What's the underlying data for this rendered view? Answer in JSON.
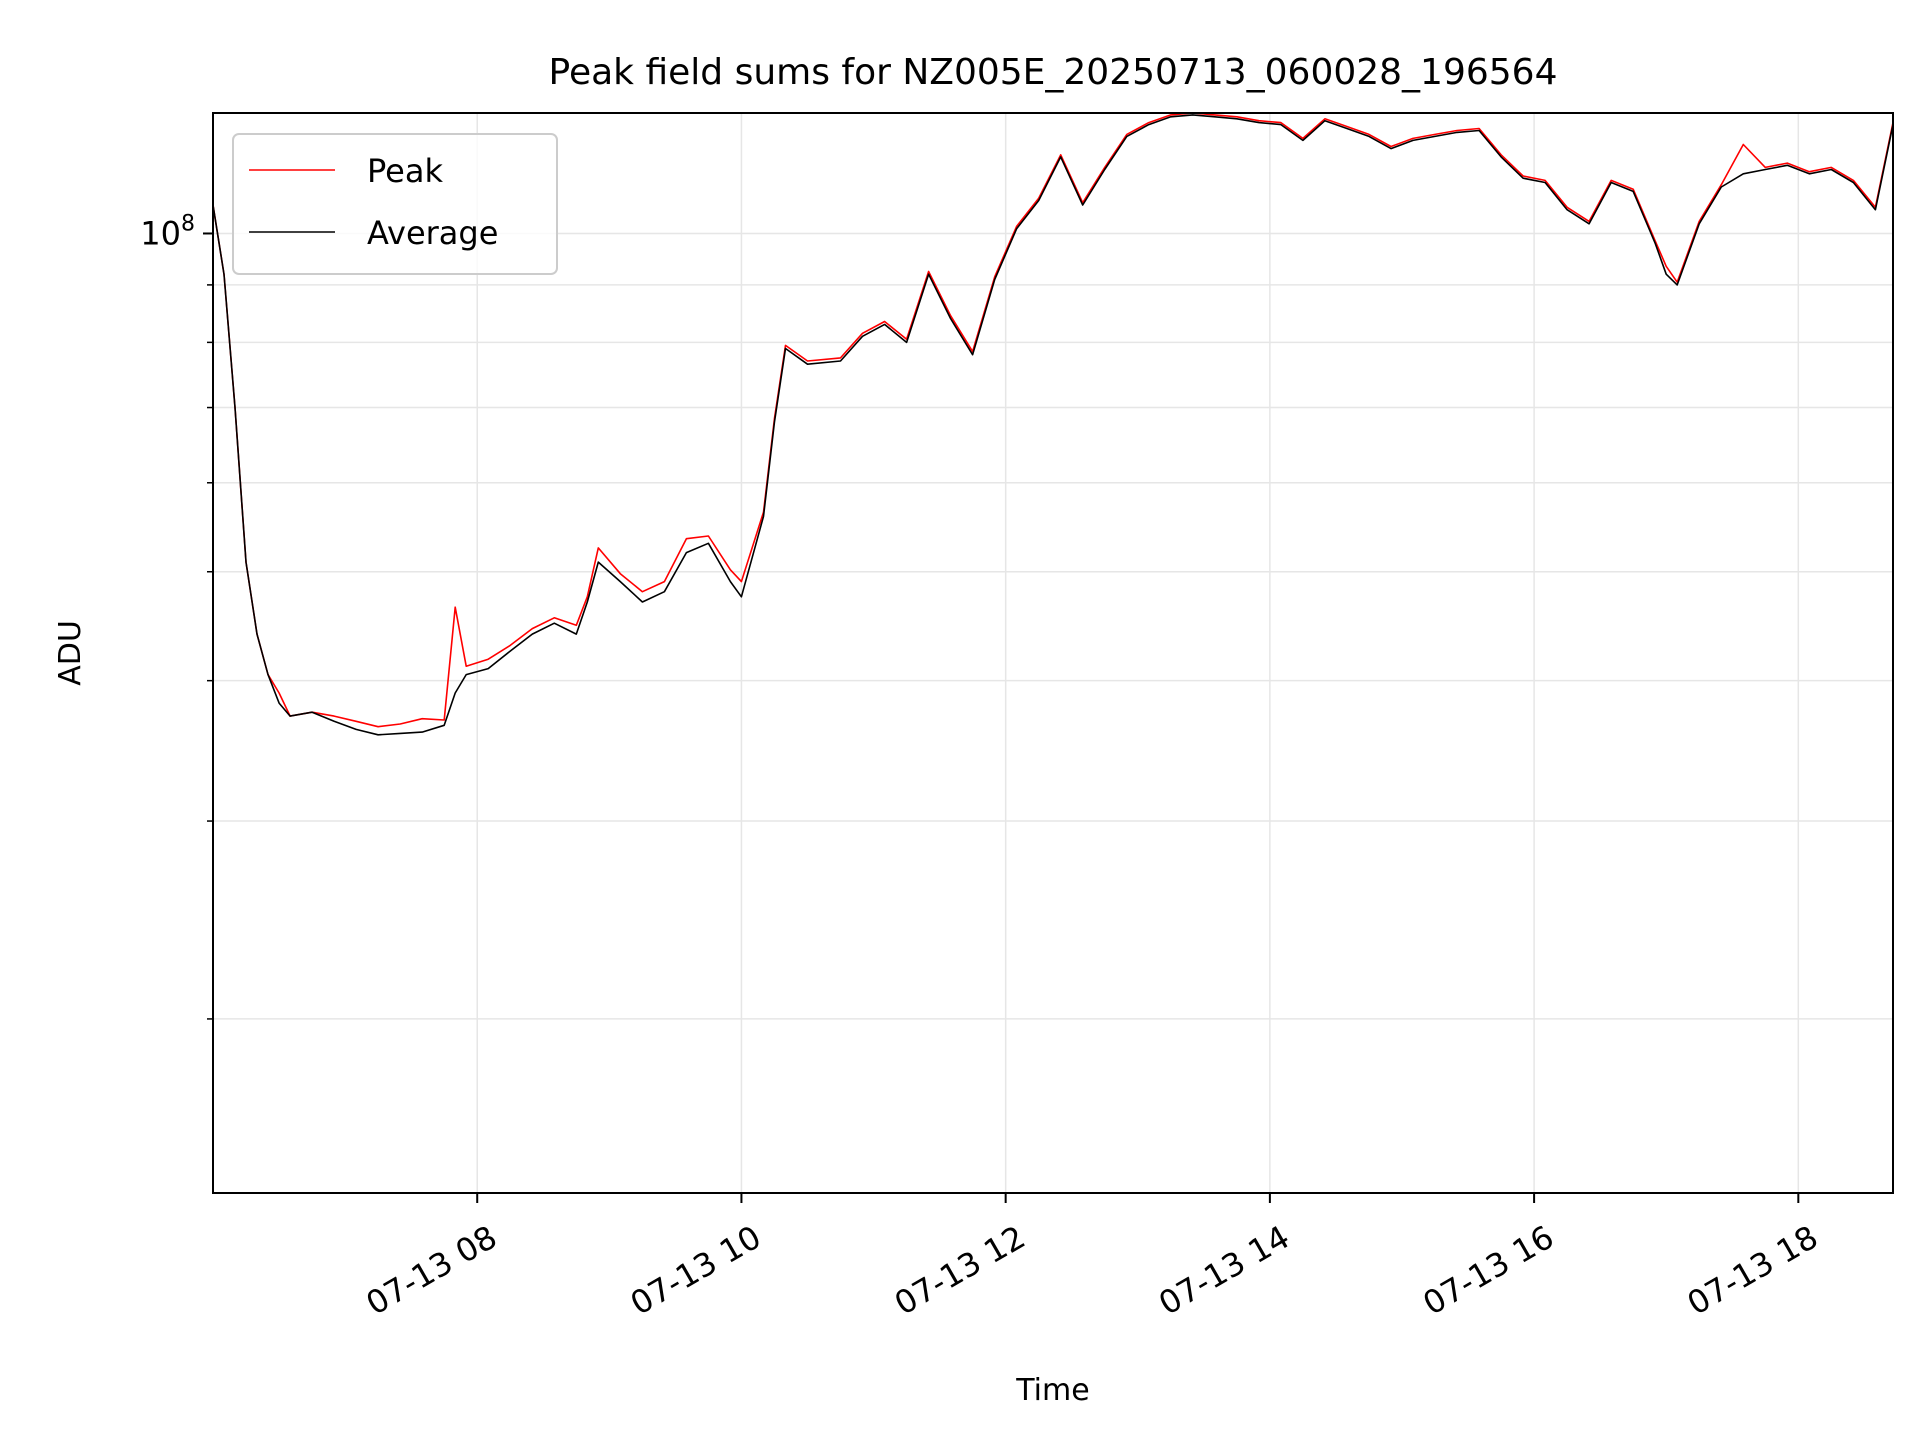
{
  "chart_data": {
    "type": "line",
    "title": "Peak field sums for NZ005E_20250713_060028_196564",
    "xlabel": "Time",
    "ylabel": "ADU",
    "yscale": "log",
    "xlim": [
      "2025-07-13 06:00",
      "2025-07-13 18:43"
    ],
    "ylim": [
      14000000,
      128000000
    ],
    "grid": true,
    "legend": "top-left",
    "x_ticks": [
      "07-13 08",
      "07-13 10",
      "07-13 12",
      "07-13 14",
      "07-13 16",
      "07-13 18"
    ],
    "x_tick_times": [
      "2025-07-13 08:00",
      "2025-07-13 10:00",
      "2025-07-13 12:00",
      "2025-07-13 14:00",
      "2025-07-13 16:00",
      "2025-07-13 18:00"
    ],
    "y_major_ticks": [
      {
        "value": 100000000,
        "base": "10",
        "exp": "8"
      }
    ],
    "y_minor_ticks": [
      20000000,
      30000000,
      40000000,
      50000000,
      60000000,
      70000000,
      80000000,
      90000000
    ],
    "series_colors": {
      "Peak": "#ff0000",
      "Average": "#000000"
    },
    "series": [
      {
        "name": "Average",
        "x": [
          "2025-07-13 06:00",
          "2025-07-13 06:05",
          "2025-07-13 06:10",
          "2025-07-13 06:15",
          "2025-07-13 06:20",
          "2025-07-13 06:25",
          "2025-07-13 06:30",
          "2025-07-13 06:35",
          "2025-07-13 06:45",
          "2025-07-13 06:55",
          "2025-07-13 07:05",
          "2025-07-13 07:15",
          "2025-07-13 07:25",
          "2025-07-13 07:35",
          "2025-07-13 07:45",
          "2025-07-13 07:50",
          "2025-07-13 07:55",
          "2025-07-13 08:05",
          "2025-07-13 08:15",
          "2025-07-13 08:25",
          "2025-07-13 08:35",
          "2025-07-13 08:45",
          "2025-07-13 08:50",
          "2025-07-13 08:55",
          "2025-07-13 09:05",
          "2025-07-13 09:15",
          "2025-07-13 09:25",
          "2025-07-13 09:35",
          "2025-07-13 09:45",
          "2025-07-13 09:55",
          "2025-07-13 10:00",
          "2025-07-13 10:10",
          "2025-07-13 10:15",
          "2025-07-13 10:20",
          "2025-07-13 10:30",
          "2025-07-13 10:45",
          "2025-07-13 10:55",
          "2025-07-13 11:05",
          "2025-07-13 11:15",
          "2025-07-13 11:25",
          "2025-07-13 11:35",
          "2025-07-13 11:45",
          "2025-07-13 11:55",
          "2025-07-13 12:05",
          "2025-07-13 12:15",
          "2025-07-13 12:25",
          "2025-07-13 12:35",
          "2025-07-13 12:45",
          "2025-07-13 12:55",
          "2025-07-13 13:05",
          "2025-07-13 13:15",
          "2025-07-13 13:25",
          "2025-07-13 13:35",
          "2025-07-13 13:45",
          "2025-07-13 13:55",
          "2025-07-13 14:05",
          "2025-07-13 14:15",
          "2025-07-13 14:25",
          "2025-07-13 14:35",
          "2025-07-13 14:45",
          "2025-07-13 14:55",
          "2025-07-13 15:05",
          "2025-07-13 15:15",
          "2025-07-13 15:25",
          "2025-07-13 15:35",
          "2025-07-13 15:45",
          "2025-07-13 15:55",
          "2025-07-13 16:05",
          "2025-07-13 16:15",
          "2025-07-13 16:25",
          "2025-07-13 16:35",
          "2025-07-13 16:45",
          "2025-07-13 16:55",
          "2025-07-13 17:00",
          "2025-07-13 17:05",
          "2025-07-13 17:15",
          "2025-07-13 17:25",
          "2025-07-13 17:35",
          "2025-07-13 17:45",
          "2025-07-13 17:55",
          "2025-07-13 18:05",
          "2025-07-13 18:15",
          "2025-07-13 18:25",
          "2025-07-13 18:35",
          "2025-07-13 18:43"
        ],
        "y": [
          106000000,
          92000000,
          70000000,
          51000000,
          44000000,
          40500000,
          38200000,
          37200000,
          37500000,
          36800000,
          36200000,
          35800000,
          35900000,
          36000000,
          36500000,
          39000000,
          40500000,
          41000000,
          42500000,
          44000000,
          45000000,
          44000000,
          47000000,
          51000000,
          49000000,
          47000000,
          48000000,
          52000000,
          53000000,
          49000000,
          47500000,
          56000000,
          68000000,
          79000000,
          76500000,
          77000000,
          81000000,
          83000000,
          80000000,
          92000000,
          84000000,
          78000000,
          91000000,
          101000000,
          107000000,
          117000000,
          106000000,
          114000000,
          122000000,
          125000000,
          127000000,
          127500000,
          127000000,
          126500000,
          125500000,
          125000000,
          121000000,
          126000000,
          124000000,
          122000000,
          119000000,
          121000000,
          122000000,
          123000000,
          123500000,
          117000000,
          112000000,
          111000000,
          105000000,
          102000000,
          111000000,
          109000000,
          98000000,
          92000000,
          90000000,
          102000000,
          110000000,
          113000000,
          114000000,
          115000000,
          113000000,
          114000000,
          111000000,
          105000000,
          125000000
        ]
      },
      {
        "name": "Peak",
        "x": [
          "2025-07-13 06:00",
          "2025-07-13 06:05",
          "2025-07-13 06:10",
          "2025-07-13 06:15",
          "2025-07-13 06:20",
          "2025-07-13 06:25",
          "2025-07-13 06:30",
          "2025-07-13 06:35",
          "2025-07-13 06:45",
          "2025-07-13 06:55",
          "2025-07-13 07:05",
          "2025-07-13 07:15",
          "2025-07-13 07:25",
          "2025-07-13 07:35",
          "2025-07-13 07:45",
          "2025-07-13 07:50",
          "2025-07-13 07:55",
          "2025-07-13 08:05",
          "2025-07-13 08:15",
          "2025-07-13 08:25",
          "2025-07-13 08:35",
          "2025-07-13 08:45",
          "2025-07-13 08:50",
          "2025-07-13 08:55",
          "2025-07-13 09:05",
          "2025-07-13 09:15",
          "2025-07-13 09:25",
          "2025-07-13 09:35",
          "2025-07-13 09:45",
          "2025-07-13 09:55",
          "2025-07-13 10:00",
          "2025-07-13 10:10",
          "2025-07-13 10:15",
          "2025-07-13 10:20",
          "2025-07-13 10:30",
          "2025-07-13 10:45",
          "2025-07-13 10:55",
          "2025-07-13 11:05",
          "2025-07-13 11:15",
          "2025-07-13 11:25",
          "2025-07-13 11:35",
          "2025-07-13 11:45",
          "2025-07-13 11:55",
          "2025-07-13 12:05",
          "2025-07-13 12:15",
          "2025-07-13 12:25",
          "2025-07-13 12:35",
          "2025-07-13 12:45",
          "2025-07-13 12:55",
          "2025-07-13 13:05",
          "2025-07-13 13:15",
          "2025-07-13 13:25",
          "2025-07-13 13:35",
          "2025-07-13 13:45",
          "2025-07-13 13:55",
          "2025-07-13 14:05",
          "2025-07-13 14:15",
          "2025-07-13 14:25",
          "2025-07-13 14:35",
          "2025-07-13 14:45",
          "2025-07-13 14:55",
          "2025-07-13 15:05",
          "2025-07-13 15:15",
          "2025-07-13 15:25",
          "2025-07-13 15:35",
          "2025-07-13 15:45",
          "2025-07-13 15:55",
          "2025-07-13 16:05",
          "2025-07-13 16:15",
          "2025-07-13 16:25",
          "2025-07-13 16:35",
          "2025-07-13 16:45",
          "2025-07-13 16:55",
          "2025-07-13 17:00",
          "2025-07-13 17:05",
          "2025-07-13 17:15",
          "2025-07-13 17:25",
          "2025-07-13 17:35",
          "2025-07-13 17:45",
          "2025-07-13 17:55",
          "2025-07-13 18:05",
          "2025-07-13 18:15",
          "2025-07-13 18:25",
          "2025-07-13 18:35",
          "2025-07-13 18:43"
        ],
        "y": [
          106000000,
          92000000,
          70000000,
          51000000,
          44000000,
          40500000,
          39000000,
          37200000,
          37500000,
          37200000,
          36800000,
          36400000,
          36600000,
          37000000,
          36900000,
          46500000,
          41200000,
          41800000,
          43000000,
          44500000,
          45500000,
          44800000,
          47500000,
          52500000,
          49800000,
          48000000,
          49000000,
          53500000,
          53800000,
          50200000,
          49000000,
          56500000,
          68500000,
          79500000,
          77000000,
          77500000,
          81500000,
          83500000,
          80500000,
          92500000,
          84500000,
          78500000,
          91500000,
          101500000,
          107500000,
          117500000,
          106500000,
          114500000,
          122500000,
          125500000,
          127500000,
          128000000,
          127500000,
          127000000,
          126000000,
          125500000,
          121500000,
          126500000,
          124500000,
          122500000,
          119500000,
          121500000,
          122500000,
          123500000,
          124000000,
          117500000,
          112500000,
          111500000,
          105500000,
          102500000,
          111500000,
          109500000,
          98500000,
          93500000,
          90500000,
          102500000,
          110500000,
          120000000,
          114500000,
          115500000,
          113500000,
          114500000,
          111500000,
          105500000,
          125500000
        ]
      }
    ]
  }
}
